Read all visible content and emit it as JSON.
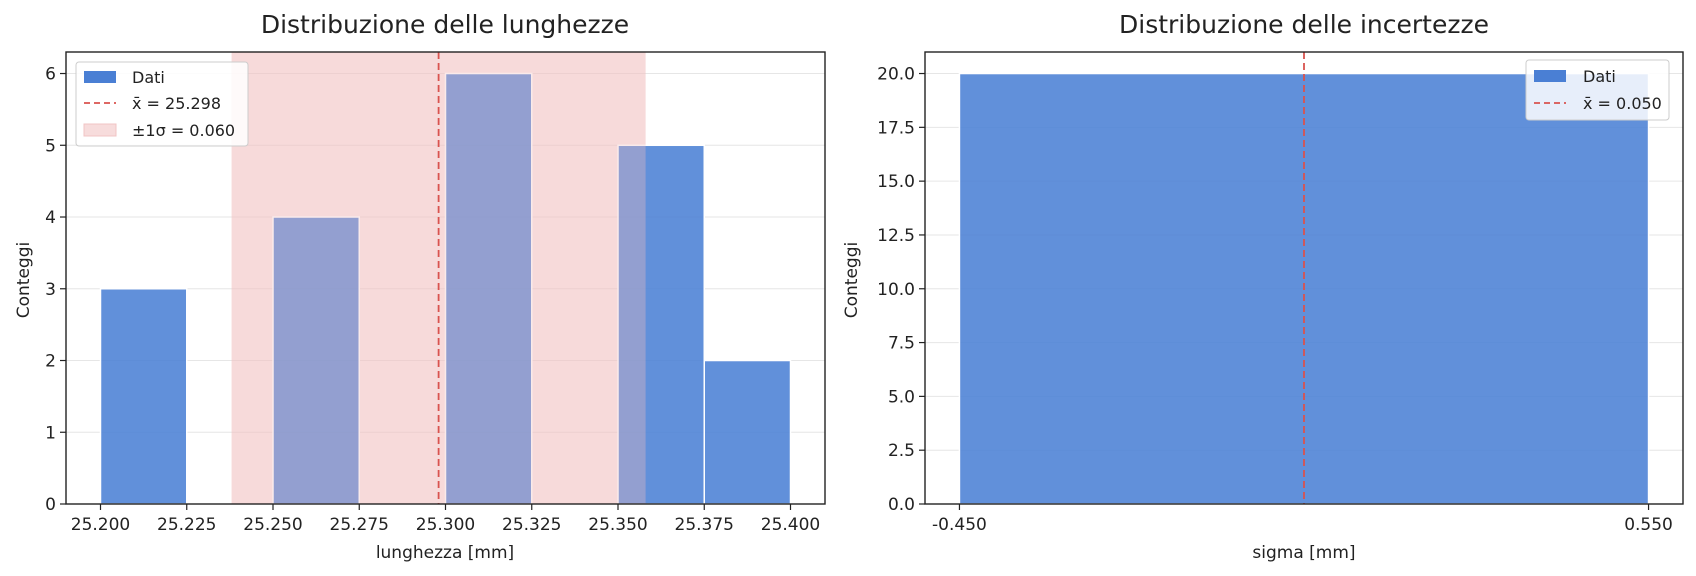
{
  "colors": {
    "bar": "#4a7fd4",
    "mean_line": "#d9534f",
    "band": "#f2c4c4",
    "grid": "#e6e6e6"
  },
  "chart_data": [
    {
      "type": "bar",
      "title": "Distribuzione delle lunghezze",
      "xlabel": "lunghezza [mm]",
      "ylabel": "Conteggi",
      "bins": [
        {
          "x0": 25.2,
          "x1": 25.225,
          "count": 3
        },
        {
          "x0": 25.225,
          "x1": 25.25,
          "count": 0
        },
        {
          "x0": 25.25,
          "x1": 25.275,
          "count": 4
        },
        {
          "x0": 25.275,
          "x1": 25.3,
          "count": 0
        },
        {
          "x0": 25.3,
          "x1": 25.325,
          "count": 6
        },
        {
          "x0": 25.325,
          "x1": 25.35,
          "count": 0
        },
        {
          "x0": 25.35,
          "x1": 25.375,
          "count": 5
        },
        {
          "x0": 25.375,
          "x1": 25.4,
          "count": 2
        }
      ],
      "mean": 25.298,
      "sigma": 0.06,
      "band": [
        25.238,
        25.358
      ],
      "xlim": [
        25.19,
        25.41
      ],
      "ylim": [
        0,
        6.3
      ],
      "xticks": [
        "25.200",
        "25.225",
        "25.250",
        "25.275",
        "25.300",
        "25.325",
        "25.350",
        "25.375",
        "25.400"
      ],
      "yticks": [
        "0",
        "1",
        "2",
        "3",
        "4",
        "5",
        "6"
      ],
      "legend": {
        "position": "upper-left",
        "entries": [
          "Dati",
          "x̄ = 25.298",
          "±1σ = 0.060"
        ]
      },
      "grid": "y"
    },
    {
      "type": "bar",
      "title": "Distribuzione delle incertezze",
      "xlabel": "sigma [mm]",
      "ylabel": "Conteggi",
      "bins": [
        {
          "x0": -0.45,
          "x1": 0.55,
          "count": 20
        }
      ],
      "mean": 0.05,
      "xlim": [
        -0.5,
        0.6
      ],
      "ylim": [
        0,
        21
      ],
      "xticks": [
        "-0.450",
        "0.550"
      ],
      "yticks": [
        "0.0",
        "2.5",
        "5.0",
        "7.5",
        "10.0",
        "12.5",
        "15.0",
        "17.5",
        "20.0"
      ],
      "legend": {
        "position": "upper-right",
        "entries": [
          "Dati",
          "x̄ = 0.050"
        ]
      },
      "grid": "y"
    }
  ]
}
